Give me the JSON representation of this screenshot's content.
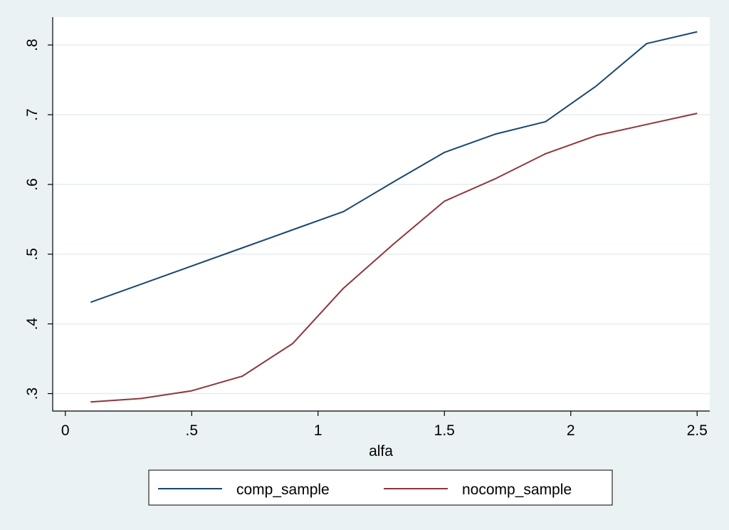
{
  "chart_data": {
    "type": "line",
    "title": "",
    "xlabel": "alfa",
    "ylabel": "",
    "xlim": [
      -0.05,
      2.55
    ],
    "ylim": [
      0.275,
      0.84
    ],
    "xticks": [
      0,
      0.5,
      1,
      1.5,
      2,
      2.5
    ],
    "xtick_labels": [
      "0",
      ".5",
      "1",
      "1.5",
      "2",
      "2.5"
    ],
    "yticks": [
      0.3,
      0.4,
      0.5,
      0.6,
      0.7,
      0.8
    ],
    "ytick_labels": [
      ".3",
      ".4",
      ".5",
      ".6",
      ".7",
      ".8"
    ],
    "grid": true,
    "legend_position": "bottom",
    "x": [
      0.1,
      0.3,
      0.5,
      0.7,
      0.9,
      1.1,
      1.3,
      1.5,
      1.7,
      1.9,
      2.1,
      2.3,
      2.5
    ],
    "series": [
      {
        "name": "comp_sample",
        "color": "#1a476f",
        "values": [
          0.431,
          0.457,
          0.483,
          0.509,
          0.535,
          0.561,
          0.604,
          0.646,
          0.672,
          0.69,
          0.741,
          0.802,
          0.819
        ]
      },
      {
        "name": "nocomp_sample",
        "color": "#90353b",
        "values": [
          0.288,
          0.293,
          0.304,
          0.325,
          0.372,
          0.451,
          0.515,
          0.576,
          0.608,
          0.644,
          0.67,
          0.686,
          0.702
        ]
      }
    ]
  }
}
